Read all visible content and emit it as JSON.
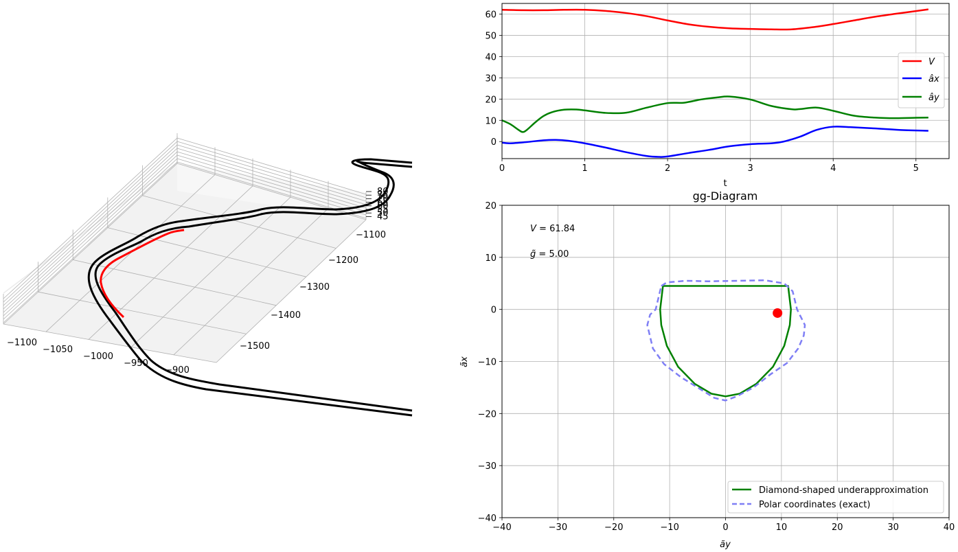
{
  "chart_data": [
    {
      "id": "track3d",
      "type": "line",
      "projection": "3d",
      "xticks": [
        "−1100",
        "−1050",
        "−1000",
        "−950",
        "−900"
      ],
      "yticks": [
        "−1100",
        "−1200",
        "−1300",
        "−1400",
        "−1500"
      ],
      "zticks": [
        "80",
        "75",
        "70",
        "65",
        "60",
        "55",
        "50",
        "45"
      ],
      "grid": true,
      "colors": {
        "track": "#000000",
        "path": "#ff0000",
        "pane": "#f2f2f2",
        "grid": "#b0b0b0"
      }
    },
    {
      "id": "timeseries",
      "type": "line",
      "xlabel": "t",
      "xlim": [
        0,
        5.4
      ],
      "ylim": [
        -8,
        65
      ],
      "xticks": [
        "0",
        "1",
        "2",
        "3",
        "4",
        "5"
      ],
      "yticks": [
        "0",
        "10",
        "20",
        "30",
        "40",
        "50",
        "60"
      ],
      "grid": true,
      "legend_position": "right",
      "series": [
        {
          "name": "V",
          "color": "#ff0000",
          "x": [
            0,
            0.25,
            0.5,
            0.75,
            1.0,
            1.25,
            1.5,
            1.75,
            2.0,
            2.25,
            2.5,
            2.75,
            3.0,
            3.25,
            3.5,
            3.75,
            4.0,
            4.25,
            4.5,
            4.75,
            5.0,
            5.15
          ],
          "y": [
            62,
            61.8,
            61.8,
            62,
            62,
            61.5,
            60.5,
            59,
            57,
            55.2,
            54,
            53.3,
            53,
            52.8,
            52.8,
            53.8,
            55.3,
            57,
            58.7,
            60.1,
            61.4,
            62.2
          ]
        },
        {
          "name": "âx",
          "color": "#0000ff",
          "x": [
            0,
            0.1,
            0.3,
            0.5,
            0.65,
            0.8,
            1.0,
            1.25,
            1.5,
            1.75,
            1.9,
            2.0,
            2.25,
            2.5,
            2.75,
            3.0,
            3.25,
            3.4,
            3.6,
            3.8,
            4.0,
            4.2,
            4.5,
            4.8,
            5.15
          ],
          "y": [
            -0.5,
            -0.8,
            -0.2,
            0.6,
            0.8,
            0.4,
            -0.8,
            -2.8,
            -5.0,
            -6.8,
            -7.2,
            -7.0,
            -5.4,
            -3.9,
            -2.2,
            -1.2,
            -0.8,
            0,
            2.3,
            5.5,
            7.0,
            6.8,
            6.2,
            5.5,
            5.1
          ]
        },
        {
          "name": "ây",
          "color": "#008000",
          "x": [
            0,
            0.1,
            0.2,
            0.25,
            0.3,
            0.4,
            0.5,
            0.6,
            0.75,
            0.9,
            1.0,
            1.25,
            1.5,
            1.75,
            2.0,
            2.2,
            2.4,
            2.6,
            2.75,
            3.0,
            3.25,
            3.5,
            3.6,
            3.8,
            4.0,
            4.25,
            4.5,
            4.75,
            5.0,
            5.15
          ],
          "y": [
            10,
            8.2,
            5.5,
            4.5,
            5.5,
            9,
            12,
            13.8,
            15,
            15.1,
            14.7,
            13.5,
            13.6,
            16,
            18.1,
            18.3,
            19.8,
            20.8,
            21.2,
            19.8,
            16.8,
            15.2,
            15.3,
            16,
            14.5,
            12.2,
            11.3,
            11.0,
            11.2,
            11.3
          ]
        }
      ]
    },
    {
      "id": "gg",
      "type": "line",
      "title": "gg-Diagram",
      "xlabel": "ãy",
      "ylabel": "ãx",
      "xlim": [
        -40,
        40
      ],
      "ylim": [
        -40,
        20
      ],
      "xticks": [
        "−40",
        "−30",
        "−20",
        "−10",
        "0",
        "10",
        "20",
        "30",
        "40"
      ],
      "yticks": [
        "20",
        "10",
        "0",
        "−10",
        "−20",
        "−30",
        "−40"
      ],
      "grid": true,
      "legend_position": "bottom-right",
      "annotations": [
        {
          "prefix": "V",
          "op": " = ",
          "value": "61.84"
        },
        {
          "prefix": "g̃",
          "op": " = ",
          "value": "5.00"
        }
      ],
      "point": {
        "x": 9.3,
        "y": -0.7,
        "color": "#ff0000"
      },
      "series": [
        {
          "name": "Diamond-shaped underapproximation",
          "color": "#008000",
          "dash": "solid",
          "x": [
            -11.2,
            11.2,
            11.7,
            11.5,
            10.5,
            8.5,
            5.5,
            2.5,
            0,
            -2.5,
            -5.5,
            -8.5,
            -10.5,
            -11.5,
            -11.7,
            -11.2
          ],
          "y": [
            4.5,
            4.5,
            0,
            -3,
            -7,
            -11,
            -14.3,
            -16.2,
            -16.7,
            -16.2,
            -14.3,
            -11,
            -7,
            -3,
            0,
            4.5
          ]
        },
        {
          "name": "Polar coordinates (exact)",
          "color": "#7f7ff5",
          "dash": "dashed",
          "x": [
            -11.5,
            -10.5,
            -7,
            -3,
            2,
            7,
            10.5,
            12,
            12.8,
            13.5,
            14.2,
            14,
            13,
            11,
            8,
            5,
            2,
            0,
            -2,
            -5,
            -8,
            -11,
            -13,
            -14,
            -13.5,
            -12.5,
            -11.5
          ],
          "y": [
            4.5,
            5.2,
            5.5,
            5.4,
            5.5,
            5.6,
            5.0,
            3.5,
            0,
            -1.5,
            -3,
            -5,
            -7.5,
            -10.3,
            -12.5,
            -15,
            -16.7,
            -17.5,
            -17,
            -15,
            -13,
            -10.5,
            -7.5,
            -3,
            -1,
            0,
            4.5
          ]
        }
      ]
    }
  ]
}
